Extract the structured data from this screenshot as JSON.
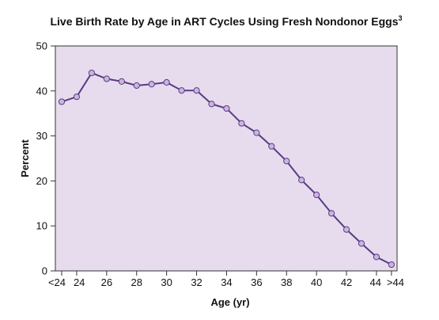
{
  "chart_data": {
    "type": "line",
    "title": "Live Birth Rate by Age in ART Cycles Using Fresh Nondonor Eggs",
    "title_superscript": "3",
    "xlabel": "Age (yr)",
    "ylabel": "Percent",
    "ylim": [
      0,
      50
    ],
    "yticks": [
      "0",
      "10",
      "20",
      "30",
      "40",
      "50"
    ],
    "xtick_labels": [
      "<24",
      "24",
      "26",
      "28",
      "30",
      "32",
      "34",
      "36",
      "38",
      "40",
      "42",
      "44",
      ">44"
    ],
    "categories": [
      "<24",
      "24",
      "25",
      "26",
      "27",
      "28",
      "29",
      "30",
      "31",
      "32",
      "33",
      "34",
      "35",
      "36",
      "37",
      "38",
      "39",
      "40",
      "41",
      "42",
      "43",
      "44",
      ">44"
    ],
    "series": [
      {
        "values": [
          37.6,
          38.7,
          44.0,
          42.7,
          42.1,
          41.2,
          41.5,
          41.9,
          40.1,
          40.1,
          37.1,
          36.1,
          32.8,
          30.7,
          27.7,
          24.4,
          20.2,
          16.9,
          12.8,
          9.2,
          6.1,
          3.1,
          1.4
        ]
      }
    ],
    "grid": false,
    "colors": {
      "plot_background": "#e6dcee",
      "line": "#5b3a86",
      "marker_fill": "#c9b6dd",
      "frame": "#333333"
    }
  }
}
